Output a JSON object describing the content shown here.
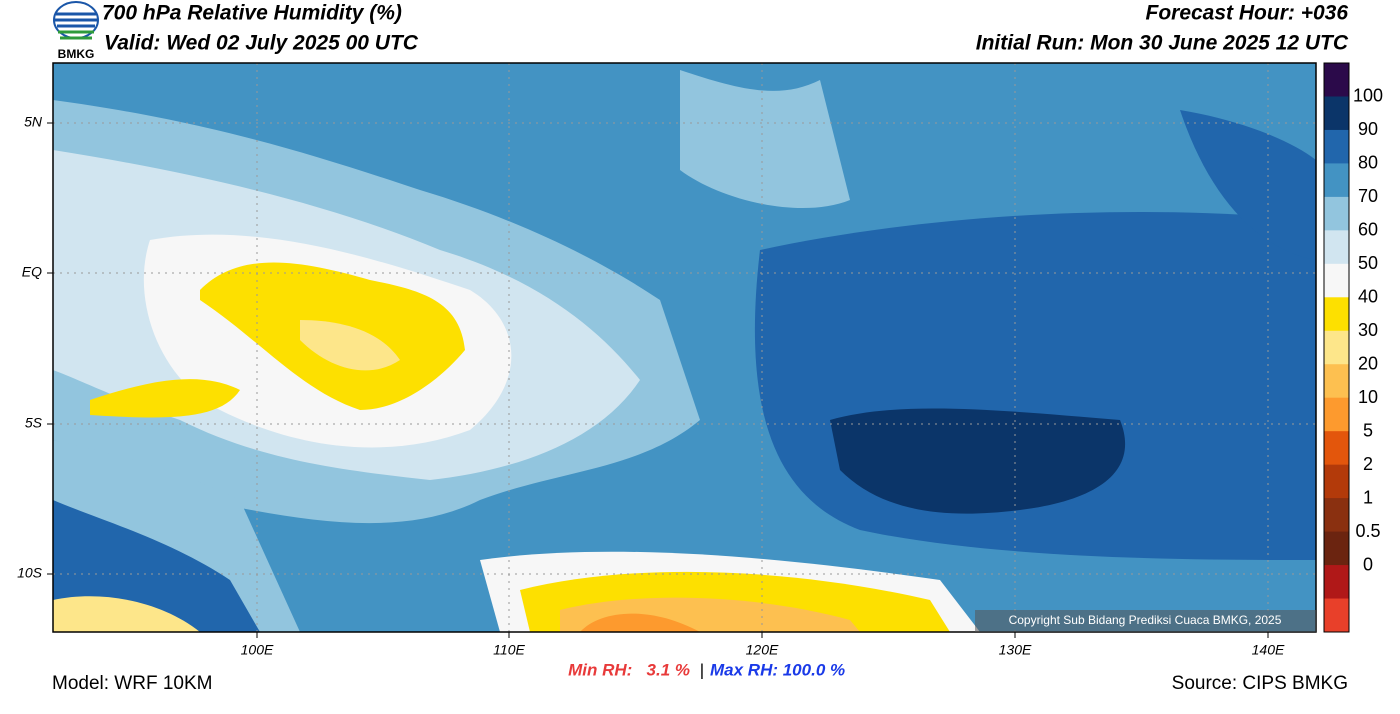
{
  "header": {
    "title": "700 hPa Relative Humidity (%)",
    "valid": "Valid: Wed 02 July 2025 00 UTC",
    "forecast_hour": "Forecast Hour: +036",
    "initial_run": "Initial Run: Mon 30 June 2025 12 UTC",
    "logo_text": "BMKG"
  },
  "map": {
    "lat_labels": [
      "5N",
      "EQ",
      "5S",
      "10S"
    ],
    "lon_labels": [
      "100E",
      "110E",
      "120E",
      "130E",
      "140E"
    ],
    "copyright": "Copyright Sub Bidang Prediksi Cuaca BMKG, 2025"
  },
  "colorbar": {
    "labels": [
      "100",
      "90",
      "80",
      "70",
      "60",
      "50",
      "40",
      "30",
      "20",
      "10",
      "5",
      "2",
      "1",
      "0.5",
      "0"
    ],
    "colors": [
      "#2b0a4a",
      "#0b3569",
      "#2166ac",
      "#4393c3",
      "#92c5de",
      "#d1e5f0",
      "#f7f7f7",
      "#fde000",
      "#fde68a",
      "#fdc050",
      "#fd9a2e",
      "#e3560c",
      "#b33a0a",
      "#8a3010",
      "#6b2410",
      "#b01818",
      "#e8402a"
    ]
  },
  "footer": {
    "model": "Model: WRF 10KM",
    "min_rh": "Min RH:   3.1 %",
    "separator": "|",
    "max_rh": "Max RH: 100.0 %",
    "source": "Source: CIPS BMKG"
  }
}
